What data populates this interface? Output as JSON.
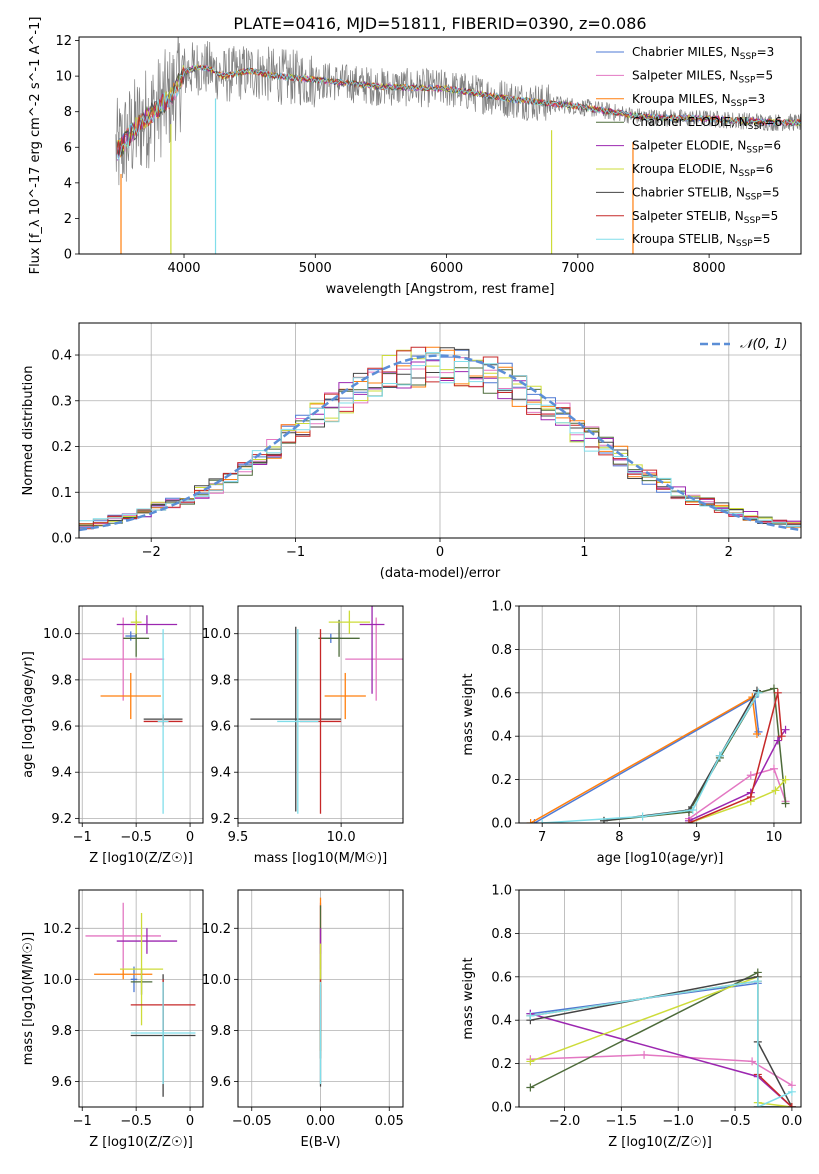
{
  "figure": {
    "title": "PLATE=0416, MJD=51811, FIBERID=0390, z=0.086"
  },
  "legend_labels": [
    "Chabrier MILES, N_SSP=3",
    "Salpeter MILES, N_SSP=5",
    "Kroupa MILES, N_SSP=3",
    "Chabrier ELODIE, N_SSP=6",
    "Salpeter ELODIE, N_SSP=6",
    "Kroupa ELODIE, N_SSP=6",
    "Chabrier STELIB, N_SSP=5",
    "Salpeter STELIB, N_SSP=5",
    "Kroupa STELIB, N_SSP=5"
  ],
  "colors": [
    "#4e79d4",
    "#e377c2",
    "#ff7f0e",
    "#4d6b3a",
    "#9c27b0",
    "#cddc39",
    "#444444",
    "#c62828",
    "#80deea"
  ],
  "chart_data": [
    {
      "id": "spectrum",
      "type": "line",
      "xlabel": "wavelength [Angstrom, rest frame]",
      "ylabel": "Flux [f_λ 10^-17 erg cm^-2 s^-1 A^-1]",
      "xlim": [
        3200,
        8700
      ],
      "ylim": [
        0,
        12.2
      ],
      "xticks": [
        4000,
        5000,
        6000,
        7000,
        8000
      ],
      "yticks": [
        0,
        2,
        4,
        6,
        8,
        10,
        12
      ],
      "data_color": "#808080",
      "continuum": {
        "x": [
          3500,
          3600,
          3700,
          3800,
          3900,
          4000,
          4100,
          4200,
          4300,
          4500,
          4700,
          5000,
          5500,
          6000,
          6500,
          7000,
          7500,
          8000,
          8500,
          8700
        ],
        "y": [
          5.8,
          6.8,
          7.6,
          8.2,
          8.8,
          10.2,
          10.5,
          10.4,
          10.0,
          10.3,
          10.0,
          9.8,
          9.4,
          9.3,
          8.7,
          8.3,
          7.7,
          7.6,
          7.4,
          7.4
        ]
      },
      "dips": [
        {
          "x": 3520,
          "y": 0
        },
        {
          "x": 3900,
          "y": 0
        },
        {
          "x": 4240,
          "y": 0
        },
        {
          "x": 6800,
          "y": 0
        },
        {
          "x": 7420,
          "y": 0
        }
      ],
      "legend": "upper right",
      "grid": false
    },
    {
      "id": "residuals",
      "type": "step",
      "xlabel": "(data-model)/error",
      "ylabel": "Normed distribution",
      "xlim": [
        -2.5,
        2.5
      ],
      "ylim": [
        0,
        0.47
      ],
      "xticks": [
        -2,
        -1,
        0,
        1,
        2
      ],
      "yticks": [
        0,
        0.1,
        0.2,
        0.3,
        0.4
      ],
      "gaussian_label": "𝒩(0, 1)",
      "gaussian_color": "#5b8ed6",
      "grid": true,
      "legend": "upper right"
    },
    {
      "id": "age_vs_Z",
      "type": "errorbar",
      "xlabel": "Z [log10(Z/Z☉)]",
      "ylabel": "age  [log10(age/yr)]",
      "xlim": [
        -1.03,
        0.12
      ],
      "ylim": [
        9.18,
        10.12
      ],
      "xticks": [
        -1,
        -0.5,
        0
      ],
      "yticks": [
        9.2,
        9.4,
        9.6,
        9.8,
        10.0
      ],
      "grid": true,
      "points": [
        {
          "x": -0.55,
          "y": 9.99,
          "xerr": 0.05,
          "yerr": 0.02
        },
        {
          "x": -0.62,
          "y": 9.89,
          "xerr": 0.38,
          "yerr": 0.18
        },
        {
          "x": -0.55,
          "y": 9.73,
          "xerr": 0.28,
          "yerr": 0.1
        },
        {
          "x": -0.5,
          "y": 9.98,
          "xerr": 0.12,
          "yerr": 0.08
        },
        {
          "x": -0.4,
          "y": 10.04,
          "xerr": 0.28,
          "yerr": 0.04
        },
        {
          "x": -0.5,
          "y": 10.05,
          "xerr": 0.05,
          "yerr": 0.05
        },
        {
          "x": -0.25,
          "y": 9.63,
          "xerr": 0.18,
          "yerr": 0.02
        },
        {
          "x": -0.25,
          "y": 9.62,
          "xerr": 0.18,
          "yerr": 0.02
        },
        {
          "x": -0.25,
          "y": 9.62,
          "xerr": 0.05,
          "yerr": 0.4
        }
      ]
    },
    {
      "id": "age_vs_mass",
      "type": "errorbar",
      "xlabel": "mass [log10(M/M☉)]",
      "ylabel": "",
      "xlim": [
        9.5,
        10.3
      ],
      "ylim": [
        9.18,
        10.12
      ],
      "xticks": [
        9.5,
        10.0
      ],
      "yticks": [
        9.2,
        9.4,
        9.6,
        9.8,
        10.0
      ],
      "grid": true,
      "points": [
        {
          "x": 9.95,
          "y": 9.98,
          "xerr": 0.05,
          "yerr": 0.02
        },
        {
          "x": 10.17,
          "y": 9.89,
          "xerr": 0.15,
          "yerr": 0.18
        },
        {
          "x": 10.02,
          "y": 9.73,
          "xerr": 0.1,
          "yerr": 0.1
        },
        {
          "x": 9.99,
          "y": 9.98,
          "xerr": 0.1,
          "yerr": 0.08
        },
        {
          "x": 10.15,
          "y": 10.04,
          "xerr": 0.06,
          "yerr": 0.3
        },
        {
          "x": 10.04,
          "y": 10.05,
          "xerr": 0.1,
          "yerr": 0.05
        },
        {
          "x": 9.78,
          "y": 9.63,
          "xerr": 0.22,
          "yerr": 0.4
        },
        {
          "x": 9.9,
          "y": 9.62,
          "xerr": 0.1,
          "yerr": 0.4
        },
        {
          "x": 9.79,
          "y": 9.62,
          "xerr": 0.1,
          "yerr": 0.4
        }
      ]
    },
    {
      "id": "mass_weight_vs_age",
      "type": "line",
      "xlabel": "age  [log10(age/yr)]",
      "ylabel": "mass weight",
      "xlim": [
        6.7,
        10.35
      ],
      "ylim": [
        0,
        1.0
      ],
      "xticks": [
        7,
        8,
        9,
        10
      ],
      "yticks": [
        0,
        0.2,
        0.4,
        0.6,
        0.8,
        1.0
      ],
      "grid": true,
      "series": [
        {
          "x": [
            6.9,
            9.75,
            9.8
          ],
          "y": [
            0.0,
            0.58,
            0.42
          ]
        },
        {
          "x": [
            8.9,
            9.7,
            10.0,
            10.15
          ],
          "y": [
            0.02,
            0.22,
            0.25,
            0.1
          ]
        },
        {
          "x": [
            6.85,
            9.72,
            9.78
          ],
          "y": [
            0.0,
            0.58,
            0.41
          ]
        },
        {
          "x": [
            7.8,
            8.9,
            9.3,
            9.8,
            10.0,
            10.15
          ],
          "y": [
            0.01,
            0.05,
            0.3,
            0.6,
            0.62,
            0.09
          ]
        },
        {
          "x": [
            8.9,
            9.7,
            10.05,
            10.15
          ],
          "y": [
            0.01,
            0.14,
            0.38,
            0.43
          ]
        },
        {
          "x": [
            8.9,
            9.7,
            10.02,
            10.15
          ],
          "y": [
            0.0,
            0.1,
            0.15,
            0.2
          ]
        },
        {
          "x": [
            7.8,
            8.9,
            9.3,
            9.78
          ],
          "y": [
            0.01,
            0.06,
            0.31,
            0.61
          ]
        },
        {
          "x": [
            8.9,
            9.7,
            10.05,
            10.1
          ],
          "y": [
            0.0,
            0.12,
            0.6,
            0.4
          ]
        },
        {
          "x": [
            7.0,
            8.3,
            8.95,
            9.3,
            9.8
          ],
          "y": [
            0.0,
            0.03,
            0.06,
            0.31,
            0.6
          ]
        }
      ]
    },
    {
      "id": "mass_vs_Z",
      "type": "errorbar",
      "xlabel": "Z [log10(Z/Z☉)]",
      "ylabel": "mass [log10(M/M☉)]",
      "xlim": [
        -1.03,
        0.12
      ],
      "ylim": [
        9.5,
        10.35
      ],
      "xticks": [
        -1,
        -0.5,
        0
      ],
      "yticks": [
        9.6,
        9.8,
        10.0,
        10.2
      ],
      "grid": true,
      "points": [
        {
          "x": -0.52,
          "y": 10.0,
          "xerr": 0.03,
          "yerr": 0.05
        },
        {
          "x": -0.62,
          "y": 10.17,
          "xerr": 0.35,
          "yerr": 0.13
        },
        {
          "x": -0.62,
          "y": 10.02,
          "xerr": 0.27,
          "yerr": 0.02
        },
        {
          "x": -0.45,
          "y": 9.99,
          "xerr": 0.1,
          "yerr": 0.05
        },
        {
          "x": -0.4,
          "y": 10.15,
          "xerr": 0.28,
          "yerr": 0.05
        },
        {
          "x": -0.45,
          "y": 10.04,
          "xerr": 0.2,
          "yerr": 0.22
        },
        {
          "x": -0.25,
          "y": 9.78,
          "xerr": 0.3,
          "yerr": 0.24
        },
        {
          "x": -0.25,
          "y": 9.9,
          "xerr": 0.3,
          "yerr": 0.1
        },
        {
          "x": -0.25,
          "y": 9.79,
          "xerr": 0.3,
          "yerr": 0.2
        }
      ]
    },
    {
      "id": "mass_vs_EBV",
      "type": "errorbar",
      "xlabel": "E(B-V)",
      "ylabel": "",
      "xlim": [
        -0.06,
        0.06
      ],
      "ylim": [
        9.5,
        10.35
      ],
      "xticks": [
        -0.05,
        0.0,
        0.05
      ],
      "yticks": [
        9.6,
        9.8,
        10.0,
        10.2
      ],
      "grid": true,
      "points": [
        {
          "x": 0.0,
          "y": 10.0,
          "xerr": 0.0,
          "yerr": 0.2
        },
        {
          "x": 0.0,
          "y": 10.17,
          "xerr": 0.0,
          "yerr": 0.13
        },
        {
          "x": 0.0,
          "y": 10.02,
          "xerr": 0.0,
          "yerr": 0.3
        },
        {
          "x": 0.0,
          "y": 9.99,
          "xerr": 0.0,
          "yerr": 0.3
        },
        {
          "x": 0.0,
          "y": 10.15,
          "xerr": 0.0,
          "yerr": 0.05
        },
        {
          "x": 0.0,
          "y": 10.04,
          "xerr": 0.0,
          "yerr": 0.1
        },
        {
          "x": 0.0,
          "y": 9.78,
          "xerr": 0.0,
          "yerr": 0.2
        },
        {
          "x": 0.0,
          "y": 9.9,
          "xerr": 0.0,
          "yerr": 0.1
        },
        {
          "x": 0.0,
          "y": 9.79,
          "xerr": 0.0,
          "yerr": 0.2
        }
      ]
    },
    {
      "id": "mass_weight_vs_Z",
      "type": "line",
      "xlabel": "Z [log10(Z/Z☉)]",
      "ylabel": "mass weight",
      "xlim": [
        -2.4,
        0.08
      ],
      "ylim": [
        0,
        1.0
      ],
      "xticks": [
        -2.0,
        -1.5,
        -1.0,
        -0.5,
        0.0
      ],
      "yticks": [
        0,
        0.2,
        0.4,
        0.6,
        0.8,
        1.0
      ],
      "grid": true,
      "series": [
        {
          "x": [
            -2.3,
            -0.3,
            -0.3,
            0.0
          ],
          "y": [
            0.43,
            0.57,
            0.0,
            0.0
          ]
        },
        {
          "x": [
            -2.3,
            -1.3,
            -0.35,
            0.0
          ],
          "y": [
            0.22,
            0.24,
            0.21,
            0.1
          ]
        },
        {
          "x": [
            -2.3,
            -0.3,
            -0.3
          ],
          "y": [
            0.42,
            0.58,
            0.0
          ]
        },
        {
          "x": [
            -2.3,
            -0.3,
            -0.3,
            0.0
          ],
          "y": [
            0.09,
            0.62,
            0.0,
            0.0
          ]
        },
        {
          "x": [
            -2.3,
            -0.3,
            0.0
          ],
          "y": [
            0.43,
            0.14,
            0.0
          ]
        },
        {
          "x": [
            -2.3,
            -0.3,
            -0.3,
            0.0
          ],
          "y": [
            0.21,
            0.6,
            0.02,
            0.0
          ]
        },
        {
          "x": [
            -2.3,
            -0.3,
            -0.3,
            0.0
          ],
          "y": [
            0.4,
            0.6,
            0.3,
            0.0
          ]
        },
        {
          "x": [
            -0.3,
            0.0
          ],
          "y": [
            0.15,
            0.0
          ]
        },
        {
          "x": [
            -2.3,
            -0.3,
            -0.3,
            0.0
          ],
          "y": [
            0.42,
            0.58,
            0.0,
            0.07
          ]
        }
      ]
    }
  ]
}
